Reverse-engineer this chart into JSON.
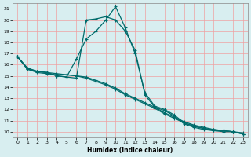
{
  "xlabel": "Humidex (Indice chaleur)",
  "xlim": [
    -0.5,
    23.5
  ],
  "ylim": [
    9.5,
    21.5
  ],
  "xticks": [
    0,
    1,
    2,
    3,
    4,
    5,
    6,
    7,
    8,
    9,
    10,
    11,
    12,
    13,
    14,
    15,
    16,
    17,
    18,
    19,
    20,
    21,
    22,
    23
  ],
  "yticks": [
    10,
    11,
    12,
    13,
    14,
    15,
    16,
    17,
    18,
    19,
    20,
    21
  ],
  "bg_color": "#d8eef0",
  "grid_color": "#f0a0a0",
  "line_color": "#006b6b",
  "lines": [
    {
      "x": [
        0,
        1,
        2,
        3,
        4,
        5,
        6,
        7,
        8,
        9,
        10,
        11,
        12,
        13,
        14,
        15,
        16,
        17,
        18,
        19,
        20,
        21,
        22,
        23
      ],
      "y": [
        16.7,
        15.6,
        15.3,
        15.2,
        15.1,
        15.1,
        15.0,
        14.8,
        14.5,
        14.2,
        13.8,
        13.3,
        12.9,
        12.5,
        12.1,
        11.6,
        11.2,
        10.8,
        10.5,
        10.3,
        10.2,
        10.1,
        10.0,
        9.8
      ]
    },
    {
      "x": [
        0,
        1,
        2,
        3,
        4,
        5,
        6,
        7,
        8,
        9,
        10,
        11,
        12,
        13,
        14,
        15,
        16,
        17,
        18,
        19,
        20,
        21,
        22,
        23
      ],
      "y": [
        16.7,
        15.7,
        15.4,
        15.3,
        15.2,
        15.1,
        15.0,
        14.9,
        14.6,
        14.3,
        13.9,
        13.4,
        13.0,
        12.6,
        12.2,
        11.7,
        11.3,
        10.9,
        10.6,
        10.4,
        10.2,
        10.1,
        10.0,
        9.9
      ]
    },
    {
      "x": [
        0,
        1,
        2,
        3,
        4,
        5,
        6,
        7,
        8,
        9,
        10,
        11,
        12,
        13,
        14,
        15,
        16,
        17,
        18,
        19,
        20,
        21,
        22,
        23
      ],
      "y": [
        16.7,
        15.6,
        15.4,
        15.3,
        15.0,
        14.9,
        16.5,
        18.3,
        19.0,
        20.0,
        21.2,
        19.3,
        17.0,
        13.5,
        12.3,
        12.0,
        11.5,
        10.8,
        10.5,
        10.3,
        10.1,
        10.1,
        10.0,
        9.8
      ]
    },
    {
      "x": [
        0,
        1,
        2,
        3,
        4,
        5,
        6,
        7,
        8,
        9,
        10,
        11,
        12,
        13,
        14,
        15,
        16,
        17,
        18,
        19,
        20,
        21,
        22,
        23
      ],
      "y": [
        16.7,
        15.7,
        15.4,
        15.3,
        15.0,
        14.9,
        14.8,
        20.0,
        20.1,
        20.3,
        20.0,
        19.0,
        17.3,
        13.3,
        12.2,
        11.9,
        11.4,
        10.7,
        10.4,
        10.2,
        10.1,
        10.0,
        10.0,
        9.8
      ]
    }
  ],
  "marker": "+",
  "markersize": 3,
  "linewidth": 0.9
}
